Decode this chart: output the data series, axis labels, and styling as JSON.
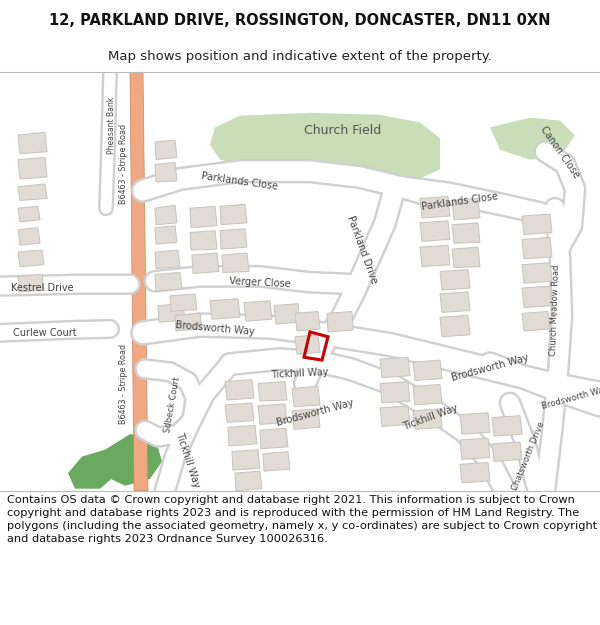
{
  "title_line1": "12, PARKLAND DRIVE, ROSSINGTON, DONCASTER, DN11 0XN",
  "title_line2": "Map shows position and indicative extent of the property.",
  "footer_text": "Contains OS data © Crown copyright and database right 2021. This information is subject to Crown copyright and database rights 2023 and is reproduced with the permission of HM Land Registry. The polygons (including the associated geometry, namely x, y co-ordinates) are subject to Crown copyright and database rights 2023 Ordnance Survey 100026316.",
  "bg_color": "#ffffff",
  "map_bg": "#f7f5f2",
  "road_color": "#ffffff",
  "road_outline": "#d0d0d0",
  "building_color": "#e0dbd5",
  "building_outline": "#c8c3bc",
  "green_light": "#c8ddb8",
  "green_dark": "#6aaa5e",
  "orange_road": "#f0a882",
  "orange_outline": "#d08060",
  "red_plot": "#cc0000",
  "title_fontsize": 10.5,
  "subtitle_fontsize": 9.5,
  "footer_fontsize": 8.2,
  "label_color": "#444444",
  "label_fontsize": 7.0
}
